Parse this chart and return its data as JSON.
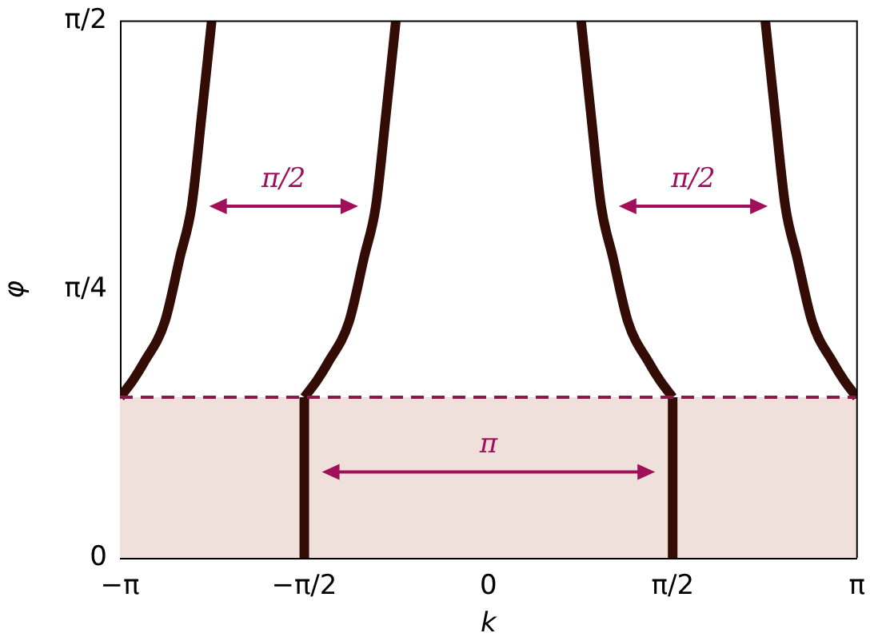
{
  "chart_data": {
    "type": "line",
    "xlabel": "k",
    "ylabel": "φ",
    "xlim": [
      -3.1416,
      3.1416
    ],
    "ylim": [
      0,
      1.5708
    ],
    "xticks": [
      {
        "value": -3.1416,
        "label": "−π"
      },
      {
        "value": -1.5708,
        "label": "−π/2"
      },
      0,
      {
        "value": 1.5708,
        "label": "π/2"
      },
      {
        "value": 3.1416,
        "label": "π"
      }
    ],
    "yticks": [
      0,
      {
        "value": 0.7854,
        "label": "π/4"
      },
      {
        "value": 1.5708,
        "label": "π/2"
      }
    ],
    "grid": false,
    "legend": false,
    "marker": "none",
    "line_style": "solid",
    "series": [
      {
        "color": "#330d05",
        "x": [
          -3.14,
          -3.03,
          -2.94,
          -2.76,
          -2.63,
          -2.53,
          -2.44,
          -2.36
        ],
        "values": [
          0.47,
          0.52,
          0.57,
          0.69,
          0.88,
          1.03,
          1.31,
          1.57
        ]
      },
      {
        "color": "#330d05",
        "x": [
          -1.57,
          -1.46,
          -1.37,
          -1.19,
          -1.06,
          -0.96,
          -0.87,
          -0.79
        ],
        "values": [
          0.47,
          0.52,
          0.57,
          0.69,
          0.88,
          1.03,
          1.31,
          1.57
        ]
      },
      {
        "color": "#330d05",
        "x": [
          0.79,
          0.87,
          0.96,
          1.06,
          1.19,
          1.37,
          1.46,
          1.57
        ],
        "values": [
          1.57,
          1.31,
          1.03,
          0.88,
          0.69,
          0.57,
          0.52,
          0.47
        ]
      },
      {
        "color": "#330d05",
        "x": [
          2.36,
          2.44,
          2.53,
          2.63,
          2.76,
          2.94,
          3.03,
          3.14
        ],
        "values": [
          1.57,
          1.31,
          1.03,
          0.88,
          0.69,
          0.57,
          0.52,
          0.47
        ]
      },
      {
        "color": "#330d05",
        "x": [
          -1.57,
          -1.57
        ],
        "values": [
          0,
          0.47
        ]
      },
      {
        "color": "#330d05",
        "x": [
          1.57,
          1.57
        ],
        "values": [
          0,
          0.47
        ]
      }
    ],
    "bands": [
      {
        "axis": "y",
        "from": 0,
        "to": 0.47,
        "color": "#f0e0dc"
      }
    ],
    "ref_lines": [
      {
        "axis": "y",
        "value": 0.47,
        "color": "#8b1a4a",
        "line_style": "dashed"
      }
    ],
    "annotations": [
      "π/2",
      "π",
      "π/2"
    ]
  }
}
